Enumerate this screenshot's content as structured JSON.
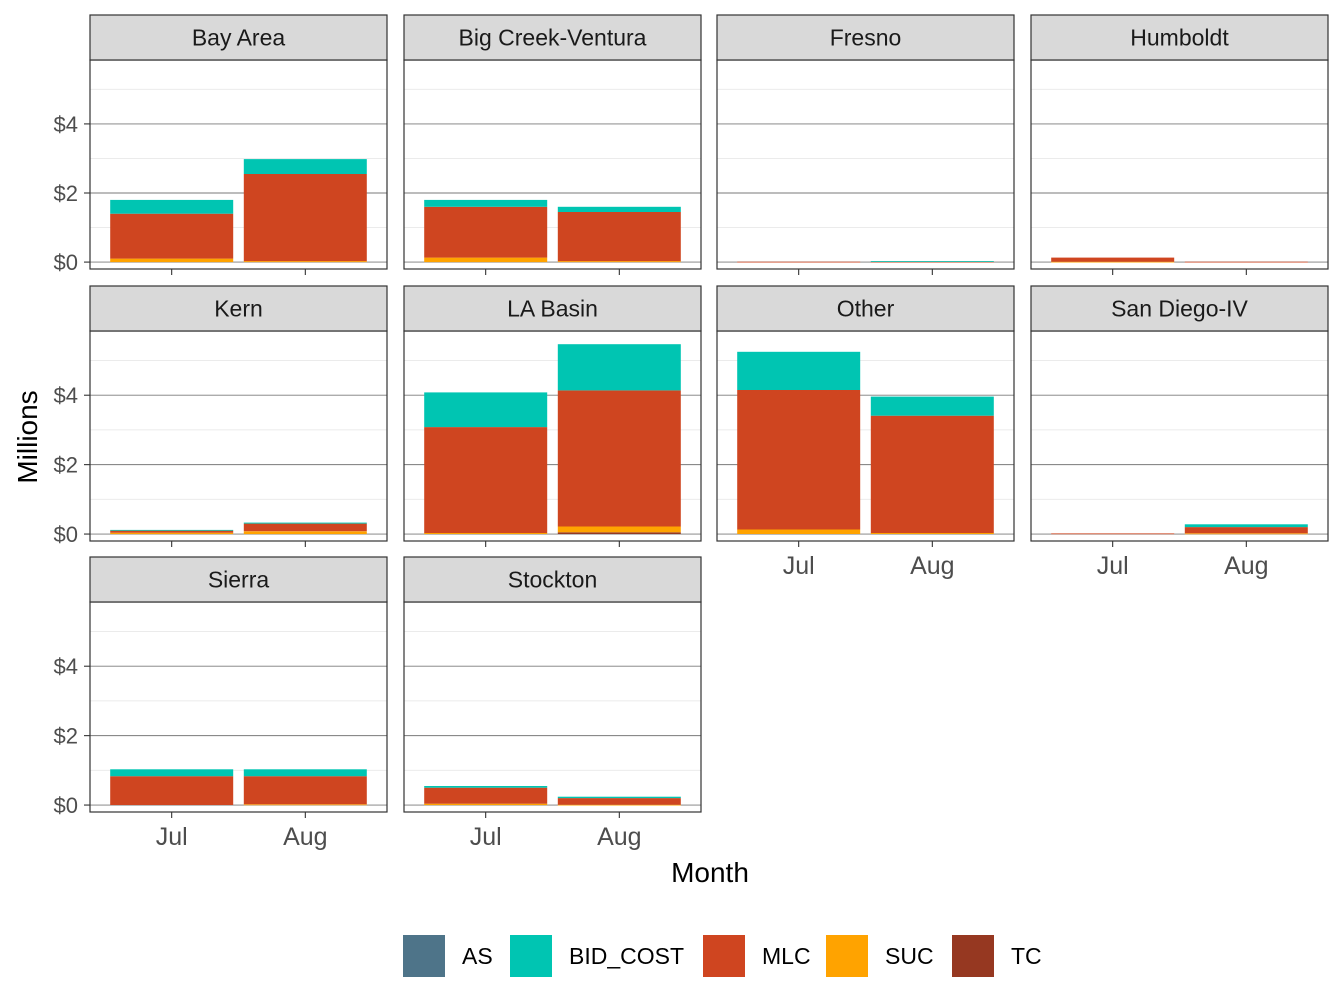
{
  "chart_data": {
    "type": "bar",
    "stacked": true,
    "facet": "wrap",
    "xlabel": "Month",
    "ylabel": "Millions",
    "categories": [
      "Jul",
      "Aug"
    ],
    "y_ticks": [
      "$0",
      "$2",
      "$4"
    ],
    "y_tick_values": [
      0,
      2,
      4
    ],
    "ylim": [
      -0.2,
      5.85
    ],
    "grid": true,
    "legend_position": "bottom",
    "stack_order_bottom_to_top": [
      "TC",
      "SUC",
      "MLC",
      "BID_COST",
      "AS"
    ],
    "legend": [
      {
        "name": "AS",
        "color": "#4e7489"
      },
      {
        "name": "BID_COST",
        "color": "#00c5b2"
      },
      {
        "name": "MLC",
        "color": "#cf4520"
      },
      {
        "name": "SUC",
        "color": "#ffa300"
      },
      {
        "name": "TC",
        "color": "#963821"
      }
    ],
    "panels": [
      {
        "title": "Bay Area",
        "values": {
          "Jul": {
            "TC": 0,
            "SUC": 0.1,
            "MLC": 1.3,
            "BID_COST": 0.4,
            "AS": 0
          },
          "Aug": {
            "TC": 0,
            "SUC": 0.03,
            "MLC": 2.52,
            "BID_COST": 0.43,
            "AS": 0
          }
        }
      },
      {
        "title": "Big Creek-Ventura",
        "values": {
          "Jul": {
            "TC": 0,
            "SUC": 0.13,
            "MLC": 1.47,
            "BID_COST": 0.2,
            "AS": 0
          },
          "Aug": {
            "TC": 0,
            "SUC": 0.03,
            "MLC": 1.42,
            "BID_COST": 0.15,
            "AS": 0
          }
        }
      },
      {
        "title": "Fresno",
        "values": {
          "Jul": {
            "TC": 0,
            "SUC": 0,
            "MLC": 0.01,
            "BID_COST": 0,
            "AS": 0
          },
          "Aug": {
            "TC": 0,
            "SUC": 0,
            "MLC": 0.01,
            "BID_COST": 0.02,
            "AS": 0
          }
        }
      },
      {
        "title": "Humboldt",
        "values": {
          "Jul": {
            "TC": 0,
            "SUC": 0.01,
            "MLC": 0.12,
            "BID_COST": 0,
            "AS": 0
          },
          "Aug": {
            "TC": 0,
            "SUC": 0,
            "MLC": 0.01,
            "BID_COST": 0,
            "AS": 0
          }
        }
      },
      {
        "title": "Kern",
        "values": {
          "Jul": {
            "TC": 0,
            "SUC": 0.04,
            "MLC": 0.06,
            "BID_COST": 0.02,
            "AS": 0
          },
          "Aug": {
            "TC": 0,
            "SUC": 0.08,
            "MLC": 0.22,
            "BID_COST": 0.03,
            "AS": 0
          }
        }
      },
      {
        "title": "LA Basin",
        "values": {
          "Jul": {
            "TC": 0,
            "SUC": 0.03,
            "MLC": 3.05,
            "BID_COST": 1.0,
            "AS": 0
          },
          "Aug": {
            "TC": 0.05,
            "SUC": 0.17,
            "MLC": 3.92,
            "BID_COST": 1.33,
            "AS": 0
          }
        }
      },
      {
        "title": "Other",
        "values": {
          "Jul": {
            "TC": 0,
            "SUC": 0.13,
            "MLC": 4.02,
            "BID_COST": 1.1,
            "AS": 0
          },
          "Aug": {
            "TC": 0,
            "SUC": 0.03,
            "MLC": 3.38,
            "BID_COST": 0.55,
            "AS": 0
          }
        }
      },
      {
        "title": "San Diego-IV",
        "values": {
          "Jul": {
            "TC": 0,
            "SUC": 0,
            "MLC": 0.02,
            "BID_COST": 0,
            "AS": 0
          },
          "Aug": {
            "TC": 0,
            "SUC": 0.02,
            "MLC": 0.18,
            "BID_COST": 0.08,
            "AS": 0
          }
        }
      },
      {
        "title": "Sierra",
        "values": {
          "Jul": {
            "TC": 0,
            "SUC": 0,
            "MLC": 0.83,
            "BID_COST": 0.2,
            "AS": 0
          },
          "Aug": {
            "TC": 0,
            "SUC": 0.02,
            "MLC": 0.81,
            "BID_COST": 0.2,
            "AS": 0
          }
        }
      },
      {
        "title": "Stockton",
        "values": {
          "Jul": {
            "TC": 0,
            "SUC": 0.04,
            "MLC": 0.46,
            "BID_COST": 0.05,
            "AS": 0
          },
          "Aug": {
            "TC": 0,
            "SUC": 0.01,
            "MLC": 0.19,
            "BID_COST": 0.04,
            "AS": 0
          }
        }
      }
    ]
  }
}
